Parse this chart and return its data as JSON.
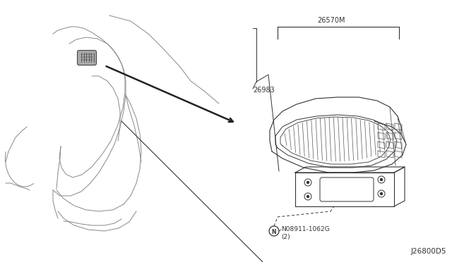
{
  "line_color": "#555555",
  "line_color_dark": "#333333",
  "label_26570M": "26570M",
  "label_26983": "26983",
  "label_bolt": "N08911-1062G",
  "label_bolt2": "(2)",
  "label_diagram": "J26800D5",
  "font_size_labels": 7,
  "font_size_diagram": 7.5,
  "car_outline_color": "#888888",
  "lamp_line_color": "#555555"
}
